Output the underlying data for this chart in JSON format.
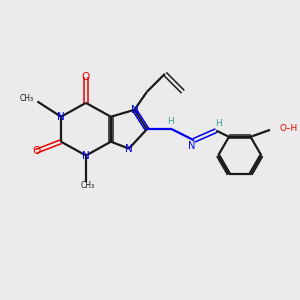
{
  "background_color": "#ebebeb",
  "bond_color": "#1a1a1a",
  "N_color": "#0000ee",
  "O_color": "#ee0000",
  "H_color": "#3d9e9e",
  "figsize": [
    3.0,
    3.0
  ],
  "dpi": 100,
  "xlim": [
    0,
    10
  ],
  "ylim": [
    0,
    10
  ]
}
